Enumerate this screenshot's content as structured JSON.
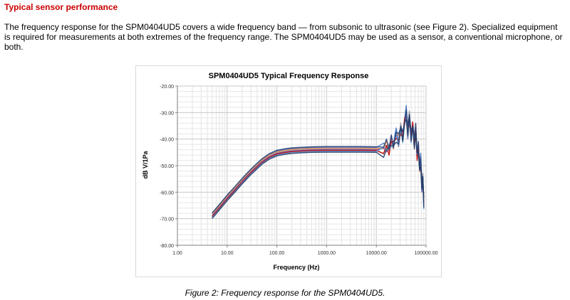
{
  "section": {
    "heading": "Typical sensor performance",
    "paragraph": "The frequency response for the SPM0404UD5 covers a wide frequency band — from subsonic to ultrasonic (see Figure 2). Specialized equipment is required for measurements at both extremes of the frequency range. The SPM0404UD5 may be used as a sensor, a conventional microphone, or both.",
    "caption": "Figure 2: Frequency response for the SPM0404UD5."
  },
  "chart_data": {
    "type": "line",
    "title": "SPM0404UD5 Typical Frequency Response",
    "xlabel": "Frequency (Hz)",
    "ylabel": "dB V/1Pa",
    "xscale": "log",
    "xlim": [
      1,
      100000
    ],
    "ylim": [
      -80,
      -20
    ],
    "xticks": [
      "1.00",
      "10.00",
      "100.00",
      "1000.00",
      "10000.00",
      "100000.00"
    ],
    "yticks": [
      "-20.00",
      "-30.00",
      "-40.00",
      "-50.00",
      "-60.00",
      "-70.00",
      "-80.00"
    ],
    "grid": true,
    "legend": "none",
    "series_colors": [
      "#4472c4",
      "#ed7d31",
      "#a5a5a5",
      "#7b2c7f",
      "#c00000",
      "#5b9bd5",
      "#264478",
      "#1f3864"
    ],
    "x": [
      5,
      7,
      10,
      14,
      20,
      30,
      50,
      70,
      100,
      150,
      200,
      300,
      500,
      1000,
      2000,
      5000,
      10000,
      14000,
      16000,
      18000,
      20000,
      22000,
      25000,
      28000,
      31000,
      34000,
      37000,
      40000,
      43000,
      46000,
      50000,
      54000,
      58000,
      62000,
      66000,
      70000,
      74000,
      78000,
      82000,
      86000,
      90000
    ],
    "values": [
      -69,
      -65.8,
      -62.3,
      -59.3,
      -56,
      -52.5,
      -48.6,
      -46.7,
      -45.4,
      -44.8,
      -44.5,
      -44.3,
      -44.1,
      -44,
      -44,
      -44,
      -44.1,
      -44.2,
      -43,
      -44,
      -40.5,
      -42.5,
      -38.5,
      -41,
      -36,
      -39,
      -33.5,
      -30,
      -38,
      -31.5,
      -39,
      -35,
      -41,
      -37,
      -46,
      -43,
      -51,
      -48,
      -58,
      -55,
      -64
    ]
  }
}
